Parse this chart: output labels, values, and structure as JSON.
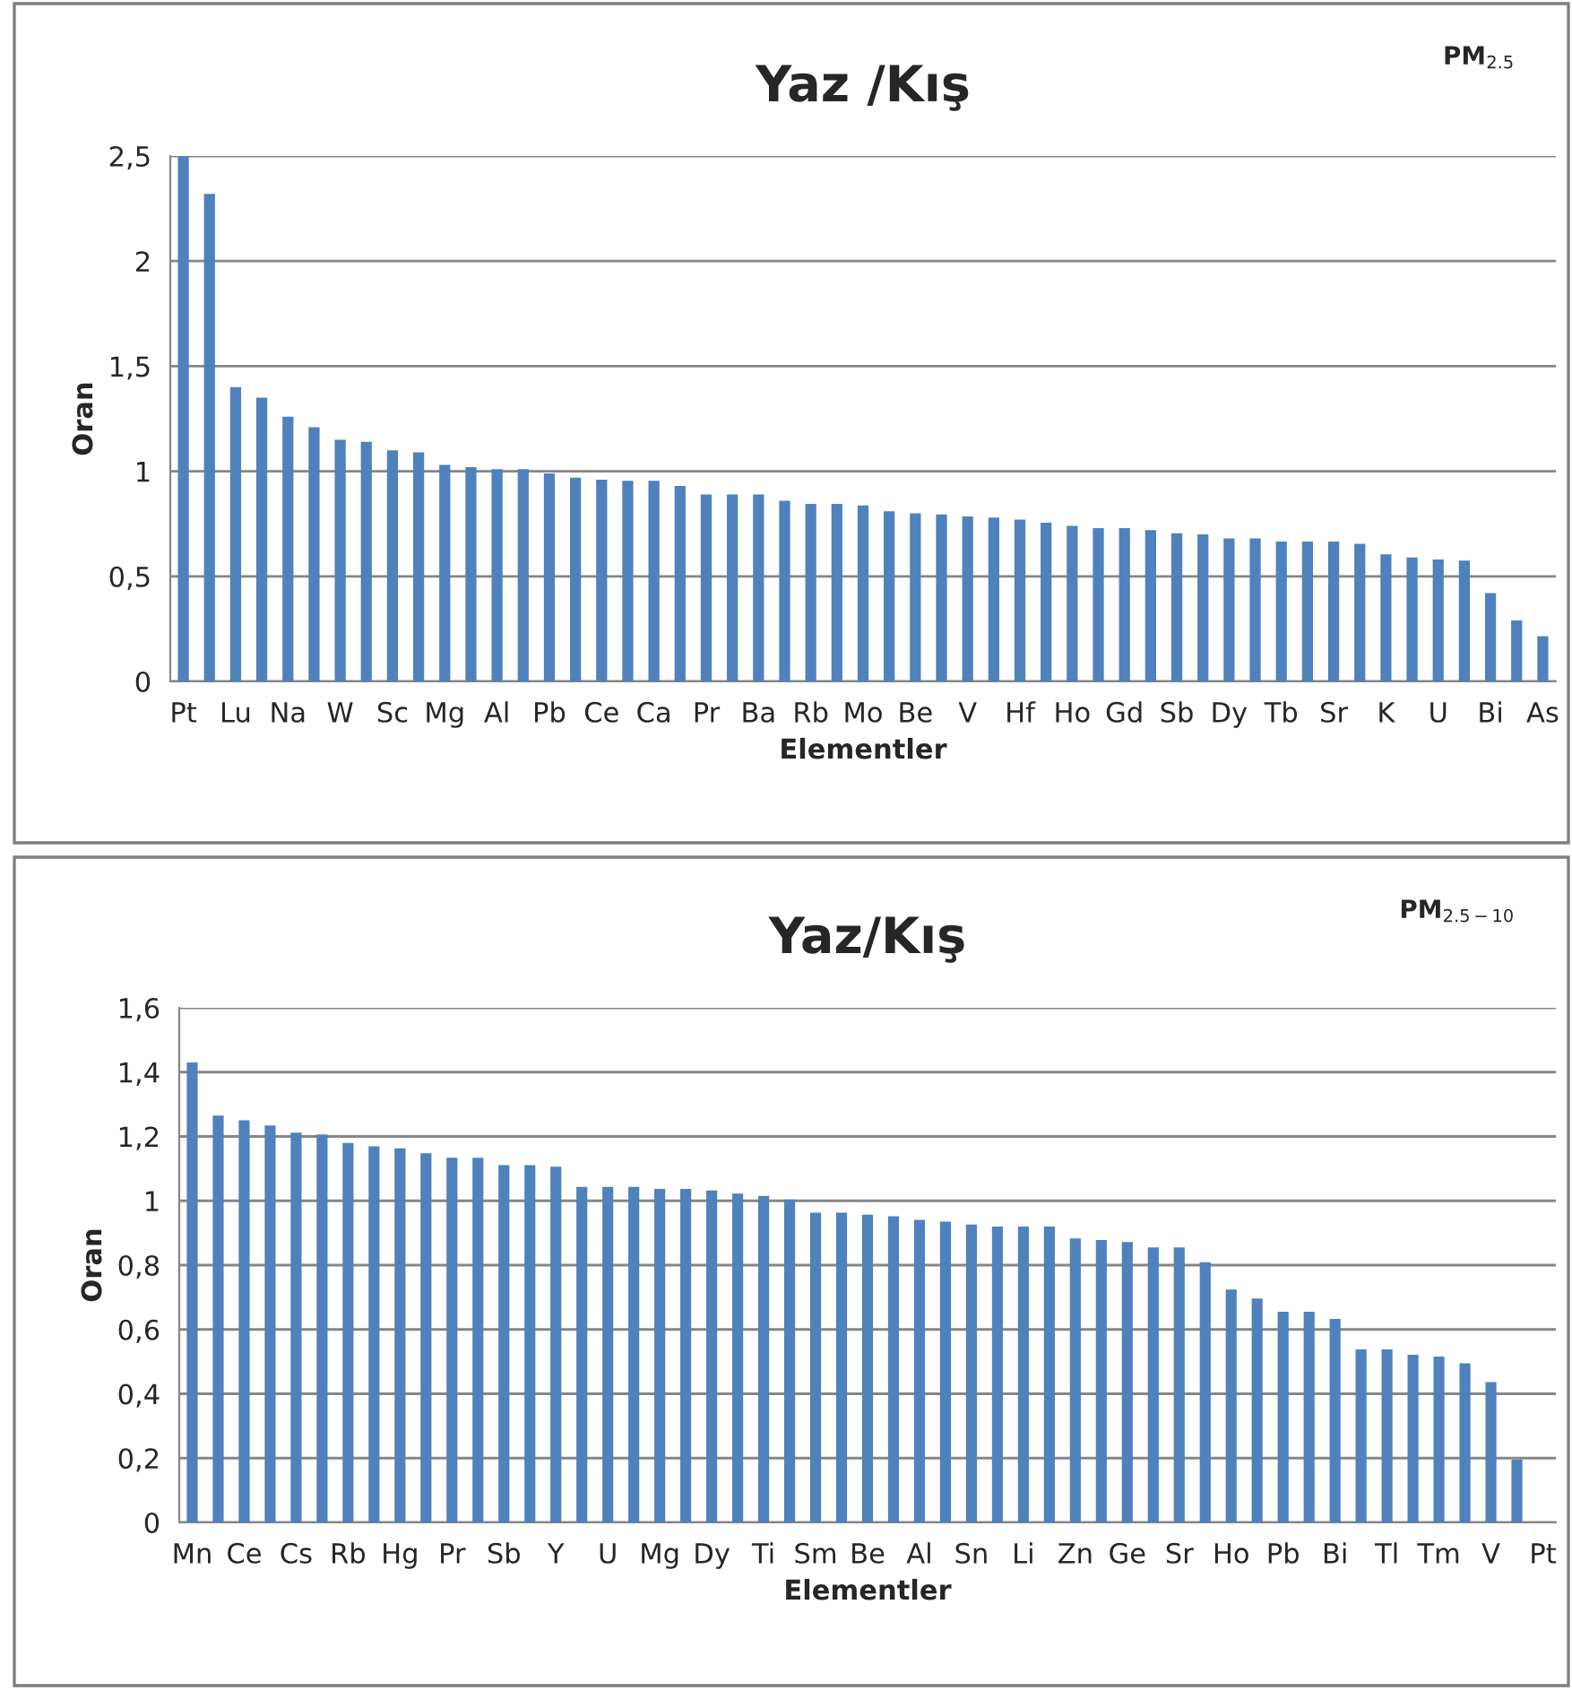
{
  "chart_data": [
    {
      "type": "bar",
      "title": "Yaz /Kış",
      "xlabel": "Elementler",
      "ylabel": "Oran",
      "annotations": [
        "PM$_{2.5}$"
      ],
      "categories": [
        "Pt",
        null,
        "Lu",
        null,
        "Na",
        null,
        "W",
        null,
        "Sc",
        null,
        "Mg",
        null,
        "Al",
        null,
        "Pb",
        null,
        "Ce",
        null,
        "Ca",
        null,
        "Pr",
        null,
        "Ba",
        null,
        "Rb",
        null,
        "Mo",
        null,
        "Be",
        null,
        "V",
        null,
        "Hf",
        null,
        "Ho",
        null,
        "Gd",
        null,
        "Sb",
        null,
        "Dy",
        null,
        "Tb",
        null,
        "Sr",
        null,
        "K",
        null,
        "U",
        null,
        "Bi",
        null,
        "As"
      ],
      "values": [
        2.5,
        2.32,
        1.4,
        1.35,
        1.26,
        1.21,
        1.15,
        1.14,
        1.1,
        1.09,
        1.03,
        1.02,
        1.01,
        1.01,
        0.99,
        0.97,
        0.96,
        0.955,
        0.955,
        0.93,
        0.89,
        0.89,
        0.89,
        0.86,
        0.845,
        0.845,
        0.837,
        0.81,
        0.8,
        0.795,
        0.785,
        0.78,
        0.77,
        0.755,
        0.74,
        0.73,
        0.73,
        0.72,
        0.705,
        0.7,
        0.68,
        0.68,
        0.665,
        0.665,
        0.665,
        0.655,
        0.605,
        0.59,
        0.58,
        0.575,
        0.42,
        0.29,
        0.215
      ],
      "color": "#4f81bd",
      "ylim": [
        0,
        2.5
      ],
      "yticks": [
        {
          "value": 0,
          "label": "0"
        },
        {
          "value": 0.5,
          "label": "0,5"
        },
        {
          "value": 1,
          "label": "1"
        },
        {
          "value": 1.5,
          "label": "1,5"
        },
        {
          "value": 2,
          "label": "2"
        },
        {
          "value": 2.5,
          "label": "2,5"
        }
      ],
      "grid": "y",
      "legend": false
    },
    {
      "type": "bar",
      "title": "Yaz/Kış",
      "xlabel": "Elementler",
      "ylabel": "Oran",
      "annotations": [
        "PM$_{2.5−10}$"
      ],
      "categories": [
        "Mn",
        null,
        "Ce",
        null,
        "Cs",
        null,
        "Rb",
        null,
        "Hg",
        null,
        "Pr",
        null,
        "Sb",
        null,
        "Y",
        null,
        "U",
        null,
        "Mg",
        null,
        "Dy",
        null,
        "Ti",
        null,
        "Sm",
        null,
        "Be",
        null,
        "Al",
        null,
        "Sn",
        null,
        "Li",
        null,
        "Zn",
        null,
        "Ge",
        null,
        "Sr",
        null,
        "Ho",
        null,
        "Pb",
        null,
        "Bi",
        null,
        "Tl",
        null,
        "Tm",
        null,
        "V",
        null,
        "Pt"
      ],
      "values": [
        1.43,
        1.265,
        1.25,
        1.234,
        1.212,
        1.206,
        1.18,
        1.169,
        1.163,
        1.148,
        1.134,
        1.134,
        1.111,
        1.111,
        1.106,
        1.043,
        1.043,
        1.043,
        1.037,
        1.037,
        1.032,
        1.022,
        1.015,
        1.004,
        0.963,
        0.963,
        0.957,
        0.952,
        0.941,
        0.935,
        0.926,
        0.92,
        0.92,
        0.92,
        0.883,
        0.878,
        0.872,
        0.855,
        0.855,
        0.809,
        0.724,
        0.696,
        0.655,
        0.655,
        0.633,
        0.538,
        0.538,
        0.521,
        0.516,
        0.495,
        0.436,
        0.195,
        null
      ],
      "color": "#4f81bd",
      "ylim": [
        0,
        1.6
      ],
      "yticks": [
        {
          "value": 0,
          "label": "0"
        },
        {
          "value": 0.2,
          "label": "0,2"
        },
        {
          "value": 0.4,
          "label": "0,4"
        },
        {
          "value": 0.6,
          "label": "0,6"
        },
        {
          "value": 0.8,
          "label": "0,8"
        },
        {
          "value": 1,
          "label": "1"
        },
        {
          "value": 1.2,
          "label": "1,2"
        },
        {
          "value": 1.4,
          "label": "1,4"
        },
        {
          "value": 1.6,
          "label": "1,6"
        }
      ],
      "grid": "y",
      "legend": false
    }
  ]
}
